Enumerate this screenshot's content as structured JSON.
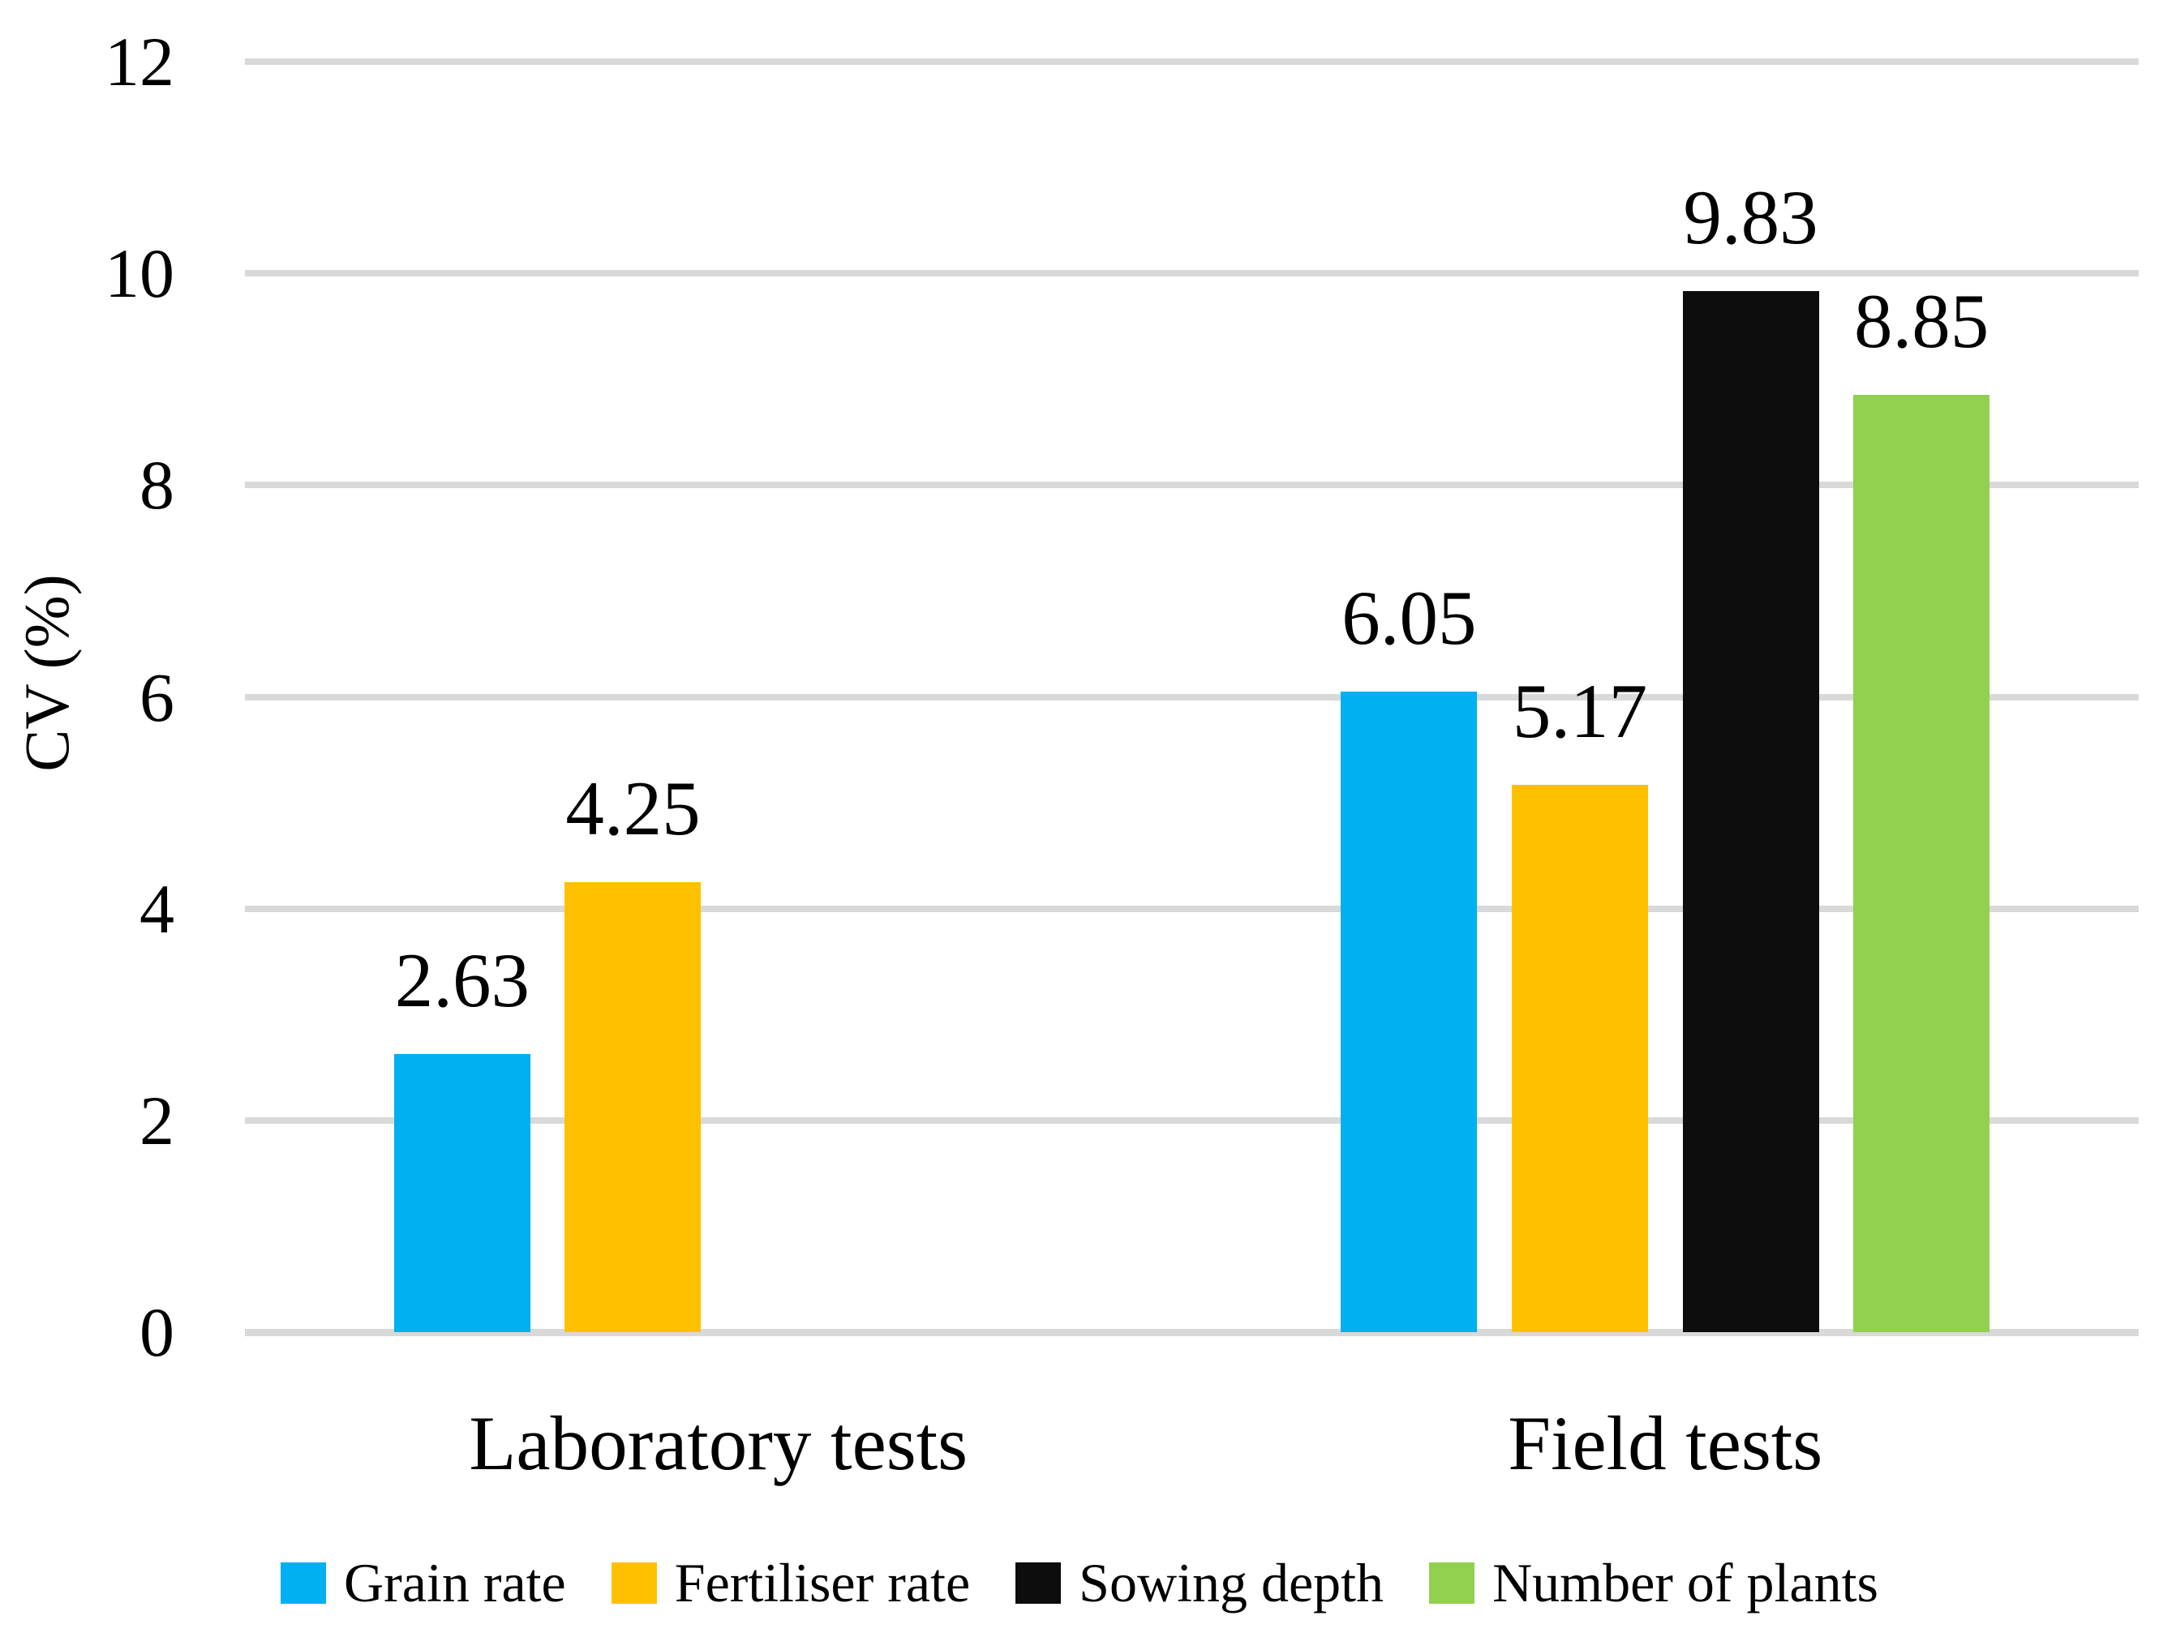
{
  "figure": {
    "background": "#FFFFFF",
    "text_color": "#000000"
  },
  "chart_data": {
    "type": "bar",
    "title": "",
    "xlabel": "",
    "ylabel": "CV (%)",
    "categories": [
      "Laboratory tests",
      "Field tests"
    ],
    "series": [
      {
        "name": "Grain rate",
        "color": "#00B0F0",
        "values": [
          2.63,
          6.05
        ],
        "labels": [
          "2.63",
          "6.05"
        ]
      },
      {
        "name": "Fertiliser rate",
        "color": "#FFC000",
        "values": [
          4.25,
          5.17
        ],
        "labels": [
          "4.25",
          "5.17"
        ]
      },
      {
        "name": "Sowing depth",
        "color": "#0D0D0D",
        "values": [
          null,
          9.83
        ],
        "labels": [
          null,
          "9.83"
        ]
      },
      {
        "name": "Number of plants",
        "color": "#92D050",
        "values": [
          null,
          8.85
        ],
        "labels": [
          null,
          "8.85"
        ]
      }
    ],
    "ylim": [
      0,
      12
    ],
    "yticks": [
      0,
      2,
      4,
      6,
      8,
      10,
      12
    ],
    "ytick_labels": [
      "0",
      "2",
      "4",
      "6",
      "8",
      "10",
      "12"
    ],
    "grid": true,
    "gridline_color": "#D9D9D9",
    "legend_position": "bottom",
    "legend_entries": [
      "Grain rate",
      "Fertiliser rate",
      "Sowing depth",
      "Number of plants"
    ]
  }
}
